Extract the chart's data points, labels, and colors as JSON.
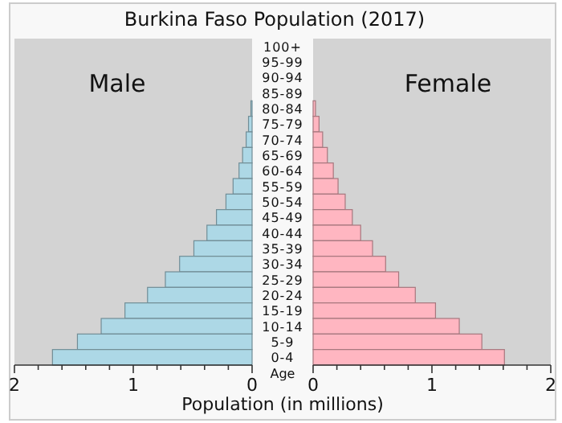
{
  "chart_data": [
    {
      "type": "bar",
      "orientation": "horizontal",
      "title": "Burkina Faso Population (2017)",
      "xlabel": "Population (in millions)",
      "ylabel": "Age",
      "categories": [
        "100+",
        "95-99",
        "90-94",
        "85-89",
        "80-84",
        "75-79",
        "70-74",
        "65-69",
        "60-64",
        "55-59",
        "50-54",
        "45-49",
        "40-44",
        "35-39",
        "30-34",
        "25-29",
        "20-24",
        "15-19",
        "10-14",
        "5-9",
        "0-4"
      ],
      "series": [
        {
          "name": "Male",
          "color": "#add8e6",
          "values": [
            0,
            0,
            0,
            0,
            0.01,
            0.03,
            0.05,
            0.08,
            0.11,
            0.16,
            0.22,
            0.3,
            0.38,
            0.49,
            0.61,
            0.73,
            0.88,
            1.07,
            1.27,
            1.47,
            1.68
          ]
        }
      ],
      "xlim": [
        2,
        0
      ],
      "xticks": [
        2,
        {
          "value": 1.8,
          "label": null
        },
        {
          "value": 1.6,
          "label": null
        },
        {
          "value": 1.4,
          "label": null
        },
        {
          "value": 1.2,
          "label": null
        },
        1,
        {
          "value": 0.8,
          "label": null
        },
        {
          "value": 0.6,
          "label": null
        },
        {
          "value": 0.4,
          "label": null
        },
        {
          "value": 0.2,
          "label": null
        },
        0
      ]
    },
    {
      "type": "bar",
      "orientation": "horizontal",
      "tick_labels": "x",
      "series": [
        {
          "name": "Female",
          "color": "#ffb6c1",
          "values": [
            0,
            0,
            0,
            0,
            0.02,
            0.05,
            0.08,
            0.12,
            0.17,
            0.21,
            0.27,
            0.33,
            0.4,
            0.5,
            0.61,
            0.72,
            0.86,
            1.03,
            1.23,
            1.42,
            1.61
          ]
        }
      ],
      "xlim": [
        0,
        2
      ],
      "xticks": [
        0,
        {
          "value": 0.2,
          "label": null
        },
        {
          "value": 0.4,
          "label": null
        },
        {
          "value": 0.6,
          "label": null
        },
        {
          "value": 0.8,
          "label": null
        },
        1,
        {
          "value": 1.2,
          "label": null
        },
        {
          "value": 1.4,
          "label": null
        },
        {
          "value": 1.6,
          "label": null
        },
        {
          "value": 1.8,
          "label": null
        },
        2
      ]
    }
  ]
}
